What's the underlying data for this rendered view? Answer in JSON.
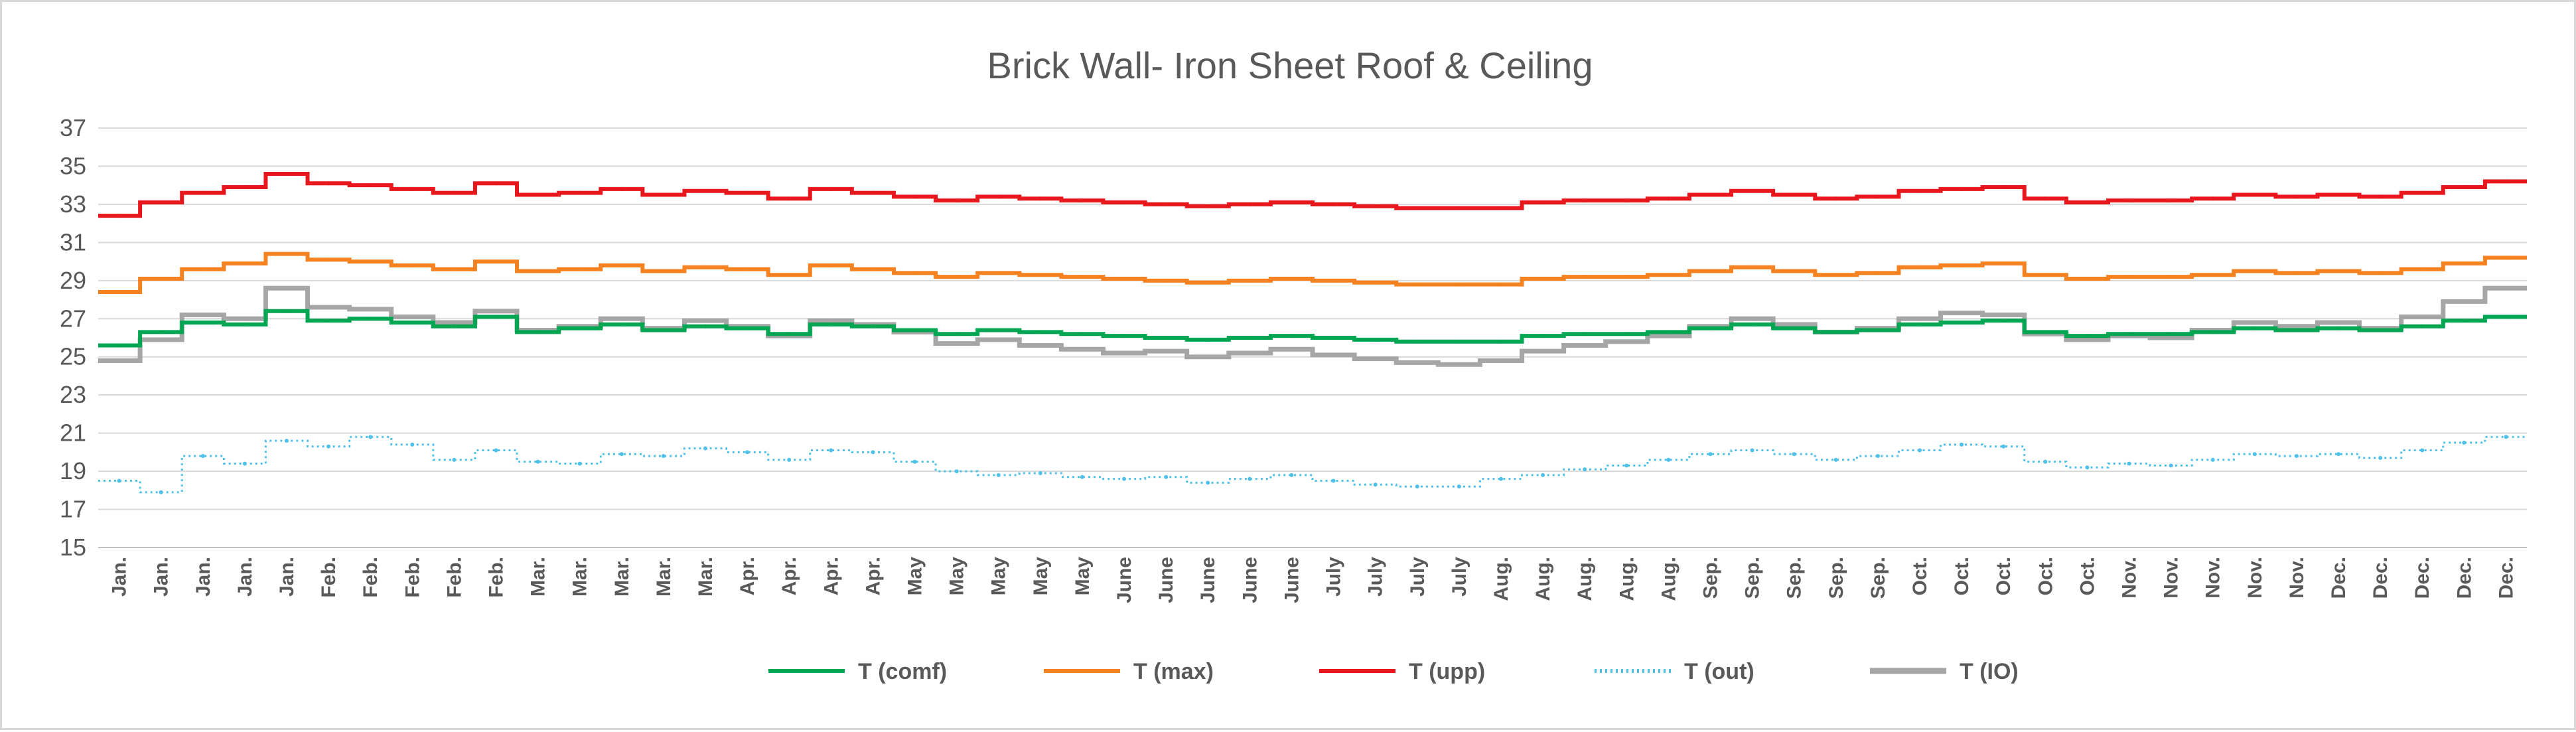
{
  "chart_data": {
    "type": "line",
    "title": "Brick Wall- Iron Sheet  Roof & Ceiling",
    "xlabel": "",
    "ylabel": "",
    "ylim": [
      15,
      37
    ],
    "yticks": [
      15,
      17,
      19,
      21,
      23,
      25,
      27,
      29,
      31,
      33,
      35,
      37
    ],
    "grid": true,
    "legend_position": "bottom",
    "categories": [
      "Jan.",
      "Jan.",
      "Jan.",
      "Jan.",
      "Jan.",
      "Feb.",
      "Feb.",
      "Feb.",
      "Feb.",
      "Feb.",
      "Mar.",
      "Mar.",
      "Mar.",
      "Mar.",
      "Mar.",
      "Apr.",
      "Apr.",
      "Apr.",
      "Apr.",
      "May",
      "May",
      "May",
      "May",
      "May",
      "June",
      "June",
      "June",
      "June",
      "June",
      "July",
      "July",
      "July",
      "July",
      "Aug.",
      "Aug.",
      "Aug.",
      "Aug.",
      "Aug.",
      "Sep.",
      "Sep.",
      "Sep.",
      "Sep.",
      "Sep.",
      "Oct.",
      "Oct.",
      "Oct.",
      "Oct.",
      "Oct.",
      "Nov.",
      "Nov.",
      "Nov.",
      "Nov.",
      "Nov.",
      "Dec.",
      "Dec.",
      "Dec.",
      "Dec.",
      "Dec."
    ],
    "series": [
      {
        "name": "T (comf)",
        "color": "#00a651",
        "style": "solid",
        "values": [
          25.6,
          26.3,
          26.8,
          26.7,
          27.4,
          26.9,
          27.0,
          26.8,
          26.6,
          27.1,
          26.3,
          26.5,
          26.7,
          26.4,
          26.6,
          26.5,
          26.2,
          26.7,
          26.6,
          26.4,
          26.2,
          26.4,
          26.3,
          26.2,
          26.1,
          26.0,
          25.9,
          26.0,
          26.1,
          26.0,
          25.9,
          25.8,
          25.8,
          25.8,
          26.1,
          26.2,
          26.2,
          26.3,
          26.5,
          26.7,
          26.5,
          26.3,
          26.4,
          26.7,
          26.8,
          26.9,
          26.3,
          26.1,
          26.2,
          26.2,
          26.3,
          26.5,
          26.4,
          26.5,
          26.4,
          26.6,
          26.9,
          27.1
        ]
      },
      {
        "name": "T (max)",
        "color": "#f58220",
        "style": "solid",
        "values": [
          28.4,
          29.1,
          29.6,
          29.9,
          30.4,
          30.1,
          30.0,
          29.8,
          29.6,
          30.0,
          29.5,
          29.6,
          29.8,
          29.5,
          29.7,
          29.6,
          29.3,
          29.8,
          29.6,
          29.4,
          29.2,
          29.4,
          29.3,
          29.2,
          29.1,
          29.0,
          28.9,
          29.0,
          29.1,
          29.0,
          28.9,
          28.8,
          28.8,
          28.8,
          29.1,
          29.2,
          29.2,
          29.3,
          29.5,
          29.7,
          29.5,
          29.3,
          29.4,
          29.7,
          29.8,
          29.9,
          29.3,
          29.1,
          29.2,
          29.2,
          29.3,
          29.5,
          29.4,
          29.5,
          29.4,
          29.6,
          29.9,
          30.2
        ]
      },
      {
        "name": "T (upp)",
        "color": "#e8171d",
        "style": "solid",
        "values": [
          32.4,
          33.1,
          33.6,
          33.9,
          34.6,
          34.1,
          34.0,
          33.8,
          33.6,
          34.1,
          33.5,
          33.6,
          33.8,
          33.5,
          33.7,
          33.6,
          33.3,
          33.8,
          33.6,
          33.4,
          33.2,
          33.4,
          33.3,
          33.2,
          33.1,
          33.0,
          32.9,
          33.0,
          33.1,
          33.0,
          32.9,
          32.8,
          32.8,
          32.8,
          33.1,
          33.2,
          33.2,
          33.3,
          33.5,
          33.7,
          33.5,
          33.3,
          33.4,
          33.7,
          33.8,
          33.9,
          33.3,
          33.1,
          33.2,
          33.2,
          33.3,
          33.5,
          33.4,
          33.5,
          33.4,
          33.6,
          33.9,
          34.2
        ]
      },
      {
        "name": "T (out)",
        "color": "#4fc1e9",
        "style": "dotted",
        "values": [
          18.5,
          17.9,
          19.8,
          19.4,
          20.6,
          20.3,
          20.8,
          20.4,
          19.6,
          20.1,
          19.5,
          19.4,
          19.9,
          19.8,
          20.2,
          20.0,
          19.6,
          20.1,
          20.0,
          19.5,
          19.0,
          18.8,
          18.9,
          18.7,
          18.6,
          18.7,
          18.4,
          18.6,
          18.8,
          18.5,
          18.3,
          18.2,
          18.2,
          18.6,
          18.8,
          19.1,
          19.3,
          19.6,
          19.9,
          20.1,
          19.9,
          19.6,
          19.8,
          20.1,
          20.4,
          20.3,
          19.5,
          19.2,
          19.4,
          19.3,
          19.6,
          19.9,
          19.8,
          19.9,
          19.7,
          20.1,
          20.5,
          20.8
        ]
      },
      {
        "name": "T (IO)",
        "color": "#a6a6a6",
        "style": "solid",
        "values": [
          24.8,
          25.9,
          27.2,
          27.0,
          28.6,
          27.6,
          27.5,
          27.1,
          26.8,
          27.4,
          26.4,
          26.6,
          27.0,
          26.5,
          26.9,
          26.6,
          26.1,
          26.9,
          26.7,
          26.3,
          25.7,
          25.9,
          25.6,
          25.4,
          25.2,
          25.3,
          25.0,
          25.2,
          25.4,
          25.1,
          24.9,
          24.7,
          24.6,
          24.8,
          25.3,
          25.6,
          25.8,
          26.1,
          26.6,
          27.0,
          26.7,
          26.3,
          26.5,
          27.0,
          27.3,
          27.2,
          26.2,
          25.9,
          26.1,
          26.0,
          26.4,
          26.8,
          26.6,
          26.8,
          26.5,
          27.1,
          27.9,
          28.6
        ]
      }
    ]
  }
}
